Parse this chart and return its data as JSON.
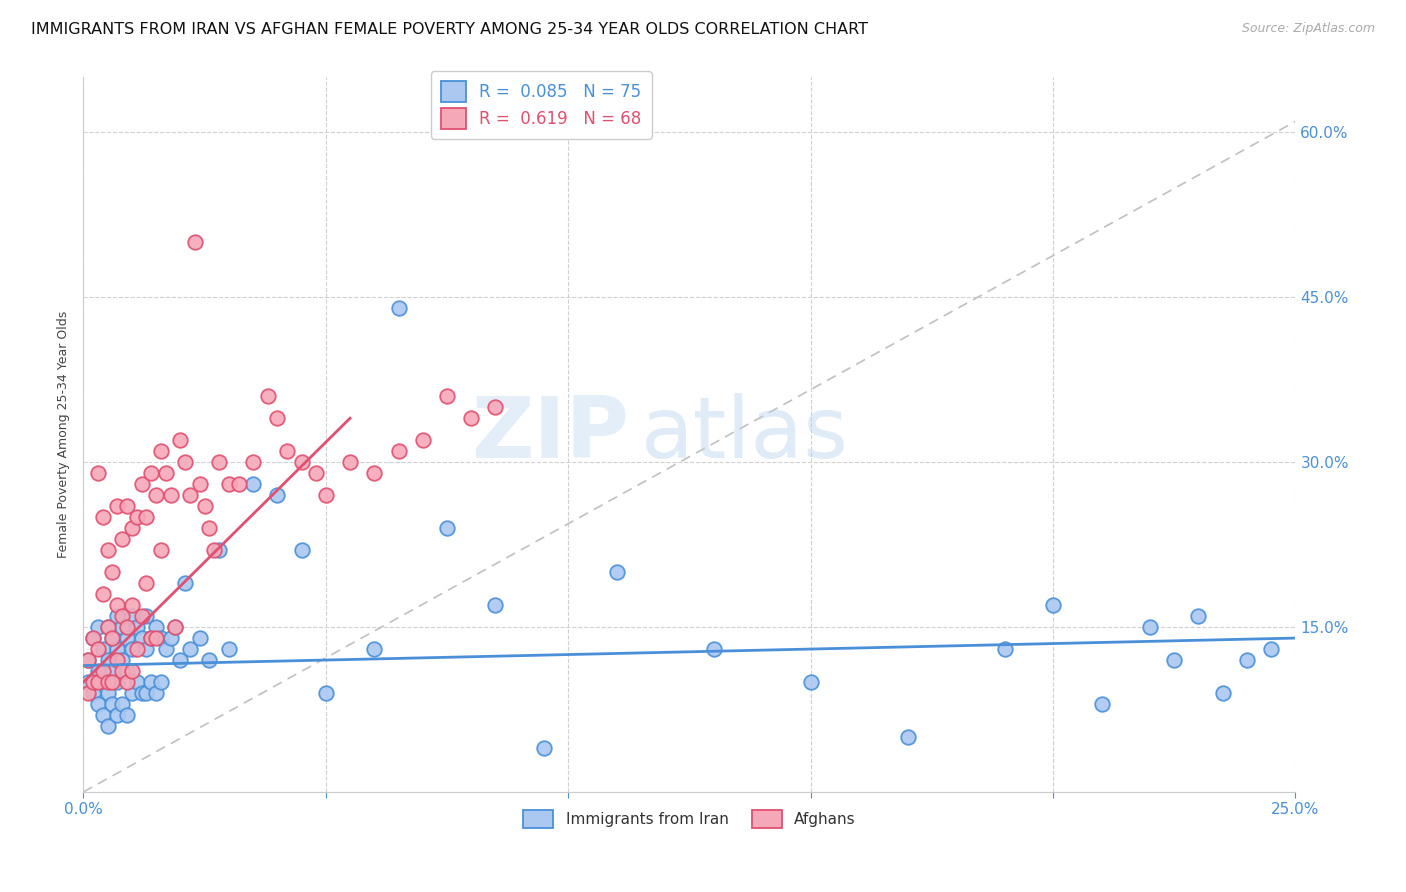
{
  "title": "IMMIGRANTS FROM IRAN VS AFGHAN FEMALE POVERTY AMONG 25-34 YEAR OLDS CORRELATION CHART",
  "source": "Source: ZipAtlas.com",
  "ylabel_label": "Female Poverty Among 25-34 Year Olds",
  "xlim": [
    0.0,
    0.25
  ],
  "ylim": [
    0.0,
    0.65
  ],
  "background_color": "#ffffff",
  "grid_color": "#d0d0d0",
  "watermark": "ZIPatlas",
  "iran_color": "#aac8f0",
  "afghan_color": "#f5a8b8",
  "iran_R": 0.085,
  "iran_N": 75,
  "afghan_R": 0.619,
  "afghan_N": 68,
  "iran_scatter_x": [
    0.001,
    0.001,
    0.002,
    0.002,
    0.003,
    0.003,
    0.003,
    0.004,
    0.004,
    0.004,
    0.005,
    0.005,
    0.005,
    0.005,
    0.006,
    0.006,
    0.006,
    0.007,
    0.007,
    0.007,
    0.007,
    0.008,
    0.008,
    0.008,
    0.009,
    0.009,
    0.009,
    0.01,
    0.01,
    0.01,
    0.011,
    0.011,
    0.012,
    0.012,
    0.013,
    0.013,
    0.013,
    0.014,
    0.014,
    0.015,
    0.015,
    0.016,
    0.016,
    0.017,
    0.018,
    0.019,
    0.02,
    0.021,
    0.022,
    0.024,
    0.026,
    0.028,
    0.03,
    0.035,
    0.04,
    0.045,
    0.05,
    0.06,
    0.065,
    0.075,
    0.085,
    0.095,
    0.11,
    0.13,
    0.15,
    0.17,
    0.19,
    0.2,
    0.21,
    0.22,
    0.225,
    0.23,
    0.235,
    0.24,
    0.245
  ],
  "iran_scatter_y": [
    0.12,
    0.1,
    0.14,
    0.09,
    0.15,
    0.11,
    0.08,
    0.13,
    0.1,
    0.07,
    0.15,
    0.12,
    0.09,
    0.06,
    0.14,
    0.11,
    0.08,
    0.16,
    0.13,
    0.1,
    0.07,
    0.15,
    0.12,
    0.08,
    0.14,
    0.11,
    0.07,
    0.16,
    0.13,
    0.09,
    0.15,
    0.1,
    0.14,
    0.09,
    0.16,
    0.13,
    0.09,
    0.14,
    0.1,
    0.15,
    0.09,
    0.14,
    0.1,
    0.13,
    0.14,
    0.15,
    0.12,
    0.19,
    0.13,
    0.14,
    0.12,
    0.22,
    0.13,
    0.28,
    0.27,
    0.22,
    0.09,
    0.13,
    0.44,
    0.24,
    0.17,
    0.04,
    0.2,
    0.13,
    0.1,
    0.05,
    0.13,
    0.17,
    0.08,
    0.15,
    0.12,
    0.16,
    0.09,
    0.12,
    0.13
  ],
  "afghan_scatter_x": [
    0.001,
    0.001,
    0.002,
    0.002,
    0.003,
    0.003,
    0.003,
    0.004,
    0.004,
    0.004,
    0.005,
    0.005,
    0.005,
    0.006,
    0.006,
    0.006,
    0.007,
    0.007,
    0.007,
    0.008,
    0.008,
    0.008,
    0.009,
    0.009,
    0.009,
    0.01,
    0.01,
    0.01,
    0.011,
    0.011,
    0.012,
    0.012,
    0.013,
    0.013,
    0.014,
    0.014,
    0.015,
    0.015,
    0.016,
    0.016,
    0.017,
    0.018,
    0.019,
    0.02,
    0.021,
    0.022,
    0.023,
    0.024,
    0.025,
    0.026,
    0.027,
    0.028,
    0.03,
    0.032,
    0.035,
    0.038,
    0.04,
    0.042,
    0.045,
    0.048,
    0.05,
    0.055,
    0.06,
    0.065,
    0.07,
    0.075,
    0.08,
    0.085
  ],
  "afghan_scatter_y": [
    0.12,
    0.09,
    0.1,
    0.14,
    0.29,
    0.13,
    0.1,
    0.25,
    0.18,
    0.11,
    0.22,
    0.15,
    0.1,
    0.2,
    0.14,
    0.1,
    0.26,
    0.17,
    0.12,
    0.23,
    0.16,
    0.11,
    0.26,
    0.15,
    0.1,
    0.24,
    0.17,
    0.11,
    0.25,
    0.13,
    0.28,
    0.16,
    0.25,
    0.19,
    0.29,
    0.14,
    0.27,
    0.14,
    0.31,
    0.22,
    0.29,
    0.27,
    0.15,
    0.32,
    0.3,
    0.27,
    0.5,
    0.28,
    0.26,
    0.24,
    0.22,
    0.3,
    0.28,
    0.28,
    0.3,
    0.36,
    0.34,
    0.31,
    0.3,
    0.29,
    0.27,
    0.3,
    0.29,
    0.31,
    0.32,
    0.36,
    0.34,
    0.35
  ],
  "iran_line_color": "#4a90d9",
  "afghan_line_color": "#e05070",
  "diagonal_color": "#c0c0c0",
  "legend_iran_label": "Immigrants from Iran",
  "legend_afghan_label": "Afghans",
  "tick_color": "#4a90d9",
  "title_fontsize": 11.5,
  "axis_label_fontsize": 9,
  "iran_line_x0": 0.0,
  "iran_line_x1": 0.25,
  "iran_line_y0": 0.115,
  "iran_line_y1": 0.14,
  "afghan_line_x0": 0.0,
  "afghan_line_x1": 0.055,
  "afghan_line_y0": 0.1,
  "afghan_line_y1": 0.34
}
